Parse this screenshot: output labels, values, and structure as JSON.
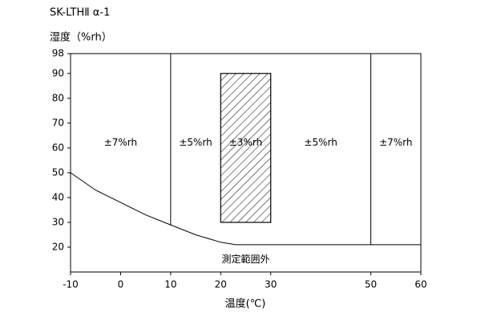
{
  "chart_data": {
    "type": "region",
    "title": "SK-LTHⅡ α-1",
    "ylabel": "湿度（%rh）",
    "xlabel": "温度(℃)",
    "xlim": [
      -10,
      60
    ],
    "ylim": [
      10,
      98
    ],
    "xticks": [
      -10,
      0,
      10,
      20,
      30,
      50,
      60
    ],
    "yticks": [
      20,
      30,
      40,
      50,
      60,
      70,
      80,
      90,
      98
    ],
    "boundary": {
      "x": [
        -10,
        -5,
        0,
        5,
        10,
        15,
        20,
        23,
        60
      ],
      "y": [
        50,
        43,
        38,
        33,
        29,
        25,
        22,
        21,
        21
      ]
    },
    "dividers": [
      10,
      50
    ],
    "hatched": {
      "x": [
        20,
        30
      ],
      "y": [
        30,
        90
      ]
    },
    "zones": [
      {
        "label": "±7%rh",
        "x": [
          -10,
          10
        ]
      },
      {
        "label": "±5%rh",
        "x": [
          10,
          20
        ]
      },
      {
        "label": "±3%rh",
        "x": [
          20,
          30
        ]
      },
      {
        "label": "±5%rh",
        "x": [
          30,
          50
        ]
      },
      {
        "label": "±7%rh",
        "x": [
          50,
          60
        ]
      }
    ],
    "zone_label_y": 62,
    "out_of_range_label": "測定範囲外",
    "out_of_range_y": 15
  }
}
